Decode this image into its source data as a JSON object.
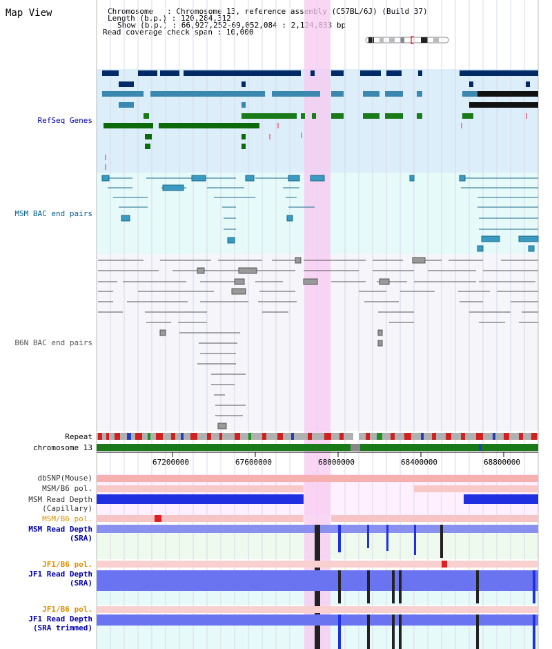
{
  "page": {
    "title": "Map View"
  },
  "header": {
    "chromosome_line": "Chromosome   : Chromosome 13, reference assembly (C57BL/6J) (Build 37)",
    "length_line": "Length (b.p.) : 120,284,312",
    "show_line": "Show (b.p.) : 66,927,252-69,052,084 : 2,124,833 bp",
    "span_line": "Read coverage check span : 10,000"
  },
  "tracks": {
    "refseq": "RefSeq Genes",
    "msm_bac": "MSM BAC end pairs",
    "b6n_bac": "B6N BAC end pairs",
    "repeat": "Repeat",
    "chromosome": "chromosome 13",
    "dbsnp": "dbSNP(Mouse)",
    "msm_b6_pol": "MSM/B6 pol.",
    "msm_depth_cap_1": "MSM Read Depth",
    "msm_depth_cap_2": "(Capillary)",
    "msm_b6_pol2": "MSM/B6 pol.",
    "msm_depth_sra_1": "MSM Read Depth",
    "msm_depth_sra_2": "(SRA)",
    "jf1_b6_pol": "JF1/B6 pol.",
    "jf1_depth_sra_1": "JF1 Read Depth",
    "jf1_depth_sra_2": "(SRA)",
    "jf1_b6_pol2": "JF1/B6 pol.",
    "jf1_depth_trim_1": "JF1 Read Depth",
    "jf1_depth_trim_2": "(SRA trimmed)"
  },
  "axis": {
    "ticks": [
      "67200000",
      "67600000",
      "68000000",
      "68400000",
      "68800000"
    ]
  },
  "colors": {
    "refseq_label": "#0000aa",
    "msm_bac_label": "#005b8c",
    "b6n_label": "#555555",
    "orange_label": "#e09000",
    "blue_label": "#0000aa",
    "highlight": "#f7d4f7"
  }
}
